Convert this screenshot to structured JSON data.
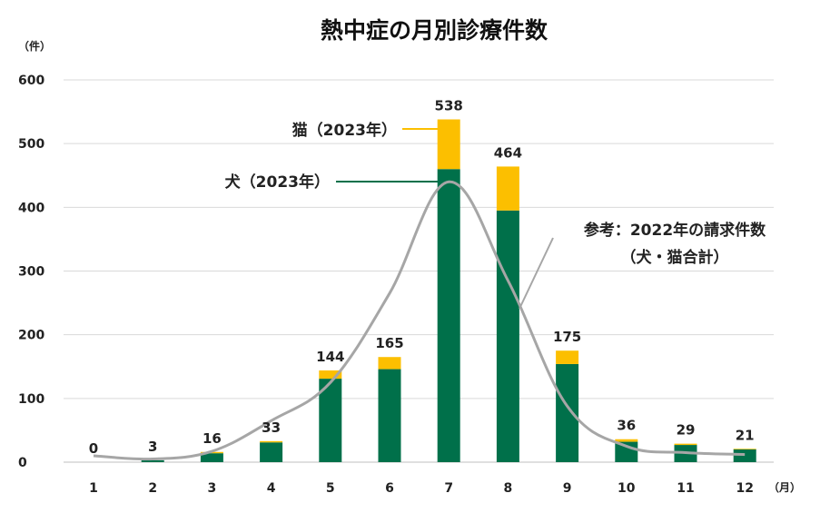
{
  "chart_data": {
    "type": "bar",
    "title": "熱中症の月別診療件数",
    "ylabel": "（件）",
    "xlabel": "（月）",
    "ylim": [
      0,
      600
    ],
    "yticks": [
      0,
      100,
      200,
      300,
      400,
      500,
      600
    ],
    "categories": [
      "1",
      "2",
      "3",
      "4",
      "5",
      "6",
      "7",
      "8",
      "9",
      "10",
      "11",
      "12"
    ],
    "stacked": true,
    "series": [
      {
        "name": "犬（2023年）",
        "kind": "bar",
        "color": "#00704a",
        "values": [
          0,
          3,
          14,
          31,
          131,
          146,
          460,
          395,
          154,
          32,
          27,
          20
        ]
      },
      {
        "name": "猫（2023年）",
        "kind": "bar",
        "color": "#fcbf00",
        "values": [
          0,
          0,
          2,
          2,
          13,
          19,
          78,
          69,
          21,
          4,
          2,
          1
        ]
      },
      {
        "name": "参考：2022年の請求件数",
        "name_line2": "（犬・猫合計）",
        "kind": "line",
        "color": "#a6a6a6",
        "values": [
          10,
          5,
          17,
          65,
          125,
          265,
          440,
          285,
          88,
          25,
          15,
          12
        ]
      }
    ],
    "totals": [
      0,
      3,
      16,
      33,
      144,
      165,
      538,
      464,
      175,
      36,
      29,
      21
    ],
    "grid": true,
    "legend": "inline-annotations"
  }
}
